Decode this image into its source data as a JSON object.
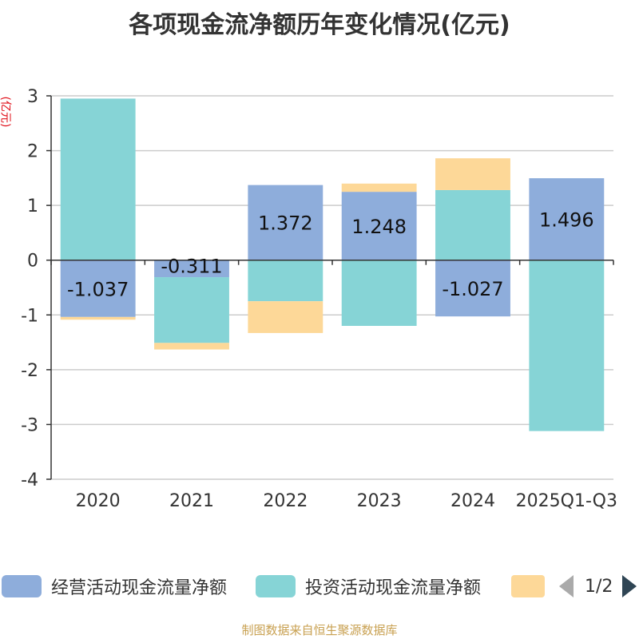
{
  "title": "各项现金流净额历年变化情况(亿元)",
  "colors": {
    "operating": "#8eaddb",
    "investing": "#86d4d6",
    "financing": "#fdd898",
    "axis": "#333333",
    "grid": "#cccccc"
  },
  "chart_data": {
    "type": "bar",
    "stacked": true,
    "title": "各项现金流净额历年变化情况(亿元)",
    "ylabel": "(亿元)",
    "ylim": [
      -4,
      3
    ],
    "yticks": [
      3,
      2,
      1,
      0,
      -1,
      -2,
      -3,
      -4
    ],
    "categories": [
      "2020",
      "2021",
      "2022",
      "2023",
      "2024",
      "2025Q1-Q3"
    ],
    "series": [
      {
        "name": "经营活动现金流量净额",
        "values": [
          -1.037,
          -0.311,
          1.372,
          1.248,
          -1.027,
          1.496
        ],
        "labels": [
          "-1.037",
          "-0.311",
          "1.372",
          "1.248",
          "-1.027",
          "1.496"
        ]
      },
      {
        "name": "投资活动现金流量净额",
        "values": [
          2.95,
          -1.2,
          -0.75,
          -1.2,
          1.28,
          -3.12
        ]
      },
      {
        "name": "",
        "values": [
          -0.05,
          -0.12,
          -0.58,
          0.15,
          0.58,
          0.0
        ]
      }
    ],
    "legend_position": "bottom"
  },
  "legend": {
    "items": [
      "经营活动现金流量净额",
      "投资活动现金流量净额",
      ""
    ],
    "page": "1/2"
  },
  "footer": "制图数据来自恒生聚源数据库"
}
